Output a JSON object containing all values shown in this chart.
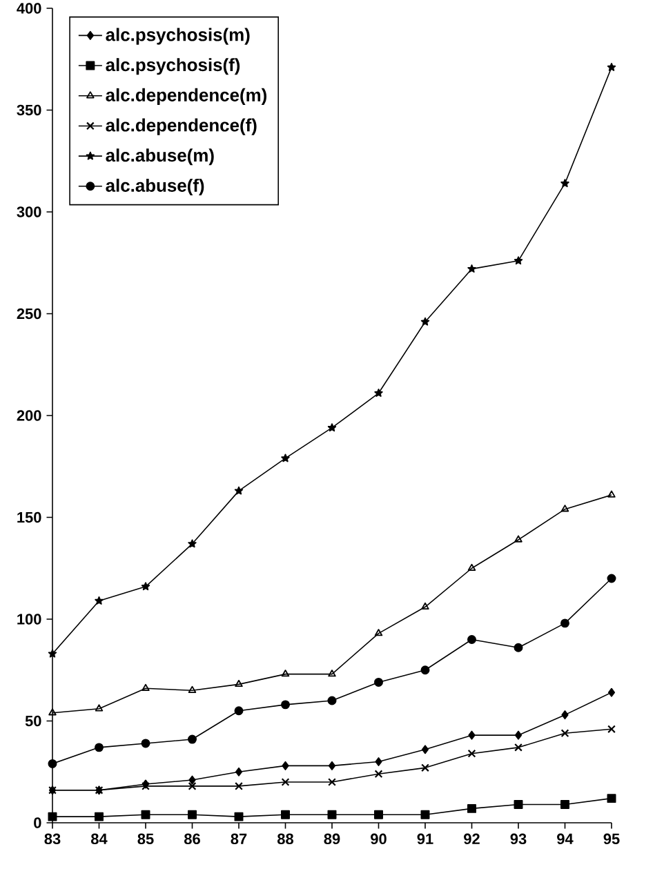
{
  "chart_data": {
    "type": "line",
    "categories": [
      "83",
      "84",
      "85",
      "86",
      "87",
      "88",
      "89",
      "90",
      "91",
      "92",
      "93",
      "94",
      "95"
    ],
    "ylim": [
      0,
      400
    ],
    "yticks": [
      0,
      50,
      100,
      150,
      200,
      250,
      300,
      350,
      400
    ],
    "grid": false,
    "legend": "top left",
    "line_style": "solid",
    "series": [
      {
        "name": "alc.psychosis(m)",
        "color": "#000000",
        "marker": "diamond",
        "values": [
          16,
          16,
          19,
          21,
          25,
          28,
          28,
          30,
          36,
          43,
          43,
          53,
          64
        ]
      },
      {
        "name": "alc.psychosis(f)",
        "color": "#000000",
        "marker": "square",
        "values": [
          3,
          3,
          4,
          4,
          3,
          4,
          4,
          4,
          4,
          7,
          9,
          9,
          12
        ]
      },
      {
        "name": "alc.dependence(m)",
        "color": "#000000",
        "marker": "triangle",
        "values": [
          54,
          56,
          66,
          65,
          68,
          73,
          73,
          93,
          106,
          125,
          139,
          154,
          161
        ]
      },
      {
        "name": "alc.dependence(f)",
        "color": "#000000",
        "marker": "cross",
        "values": [
          16,
          16,
          18,
          18,
          18,
          20,
          20,
          24,
          27,
          34,
          37,
          44,
          46
        ]
      },
      {
        "name": "alc.abuse(m)",
        "color": "#000000",
        "marker": "star",
        "values": [
          83,
          109,
          116,
          137,
          163,
          179,
          194,
          211,
          246,
          272,
          276,
          314,
          371
        ]
      },
      {
        "name": "alc.abuse(f)",
        "color": "#000000",
        "marker": "circle",
        "values": [
          29,
          37,
          39,
          41,
          55,
          58,
          60,
          69,
          75,
          90,
          86,
          98,
          120
        ]
      }
    ]
  }
}
